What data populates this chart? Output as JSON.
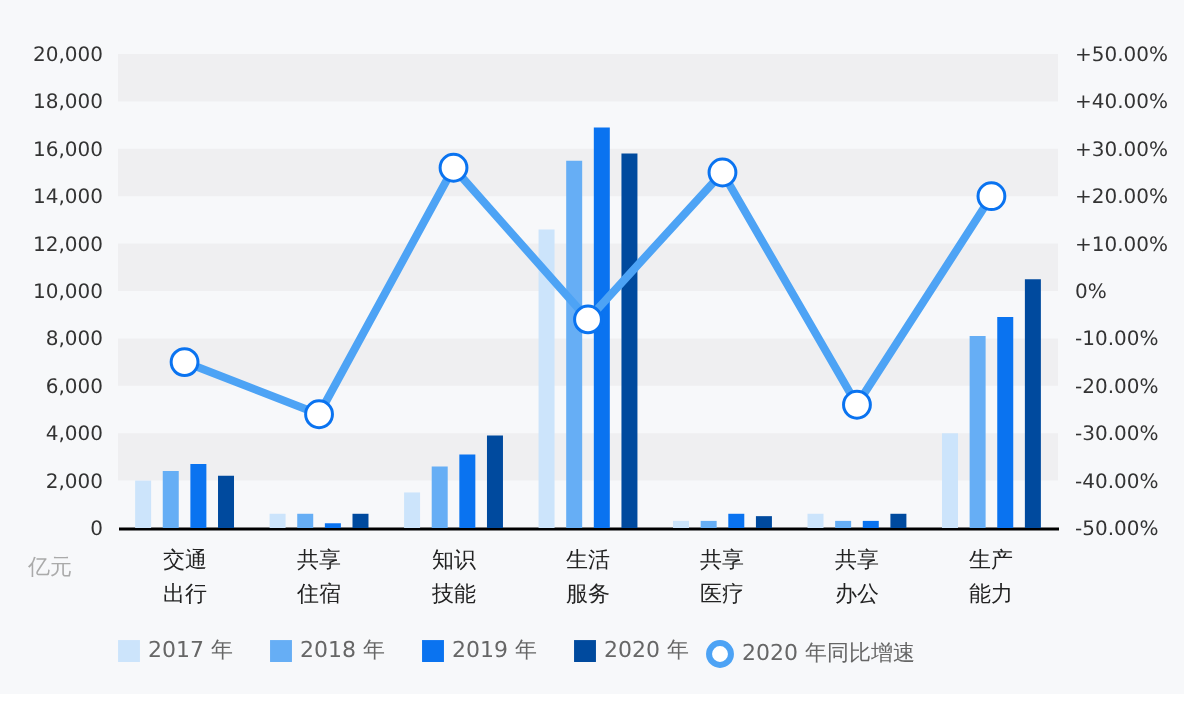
{
  "chart_data": {
    "type": "bar",
    "categories": [
      "交通出行",
      "共享住宿",
      "知识技能",
      "生活服务",
      "共享医疗",
      "共享办公",
      "生产能力"
    ],
    "series": [
      {
        "name": "2017 年",
        "color": "#cce4fb",
        "values": [
          2000,
          600,
          1500,
          12600,
          300,
          600,
          4000
        ]
      },
      {
        "name": "2018 年",
        "color": "#66aef5",
        "values": [
          2400,
          600,
          2600,
          15500,
          300,
          300,
          8100
        ]
      },
      {
        "name": "2019 年",
        "color": "#0a73f0",
        "values": [
          2700,
          200,
          3100,
          16900,
          600,
          300,
          8900
        ]
      },
      {
        "name": "2020 年",
        "color": "#004a9e",
        "values": [
          2200,
          600,
          3900,
          15800,
          500,
          600,
          10500
        ]
      },
      {
        "name": "2020 年同比增速",
        "type": "line",
        "axis": "y2",
        "color": "#4da3f5",
        "values": [
          -15,
          -26,
          26,
          -6,
          25,
          -24,
          20
        ]
      }
    ],
    "ylim": [
      0,
      20000
    ],
    "yticks": [
      {
        "value": 0,
        "label": "0"
      },
      {
        "value": 2000,
        "label": "2,000"
      },
      {
        "value": 4000,
        "label": "4,000"
      },
      {
        "value": 6000,
        "label": "6,000"
      },
      {
        "value": 8000,
        "label": "8,000"
      },
      {
        "value": 10000,
        "label": "10,000"
      },
      {
        "value": 12000,
        "label": "12,000"
      },
      {
        "value": 14000,
        "label": "14,000"
      },
      {
        "value": 16000,
        "label": "16,000"
      },
      {
        "value": 18000,
        "label": "18,000"
      },
      {
        "value": 20000,
        "label": "20,000"
      }
    ],
    "y2lim": [
      -50,
      50
    ],
    "y2ticks": [
      {
        "value": -50,
        "label": "-50.00%"
      },
      {
        "value": -40,
        "label": "-40.00%"
      },
      {
        "value": -30,
        "label": "-30.00%"
      },
      {
        "value": -20,
        "label": "-20.00%"
      },
      {
        "value": -10,
        "label": "-10.00%"
      },
      {
        "value": 0,
        "label": "0%"
      },
      {
        "value": 10,
        "label": "+10.00%"
      },
      {
        "value": 20,
        "label": "+20.00%"
      },
      {
        "value": 30,
        "label": "+30.00%"
      },
      {
        "value": 40,
        "label": "+40.00%"
      },
      {
        "value": 50,
        "label": "+50.00%"
      }
    ],
    "bands": [
      {
        "axis": "y",
        "from": 2000,
        "to": 4000,
        "color": "#efeff1"
      },
      {
        "axis": "y",
        "from": 6000,
        "to": 8000,
        "color": "#efeff1"
      },
      {
        "axis": "y",
        "from": 10000,
        "to": 12000,
        "color": "#efeff1"
      },
      {
        "axis": "y",
        "from": 14000,
        "to": 16000,
        "color": "#efeff1"
      },
      {
        "axis": "y",
        "from": 18000,
        "to": 20000,
        "color": "#efeff1"
      }
    ],
    "annotations": [
      "亿元"
    ],
    "legend": "bottom",
    "marker": "circle"
  }
}
